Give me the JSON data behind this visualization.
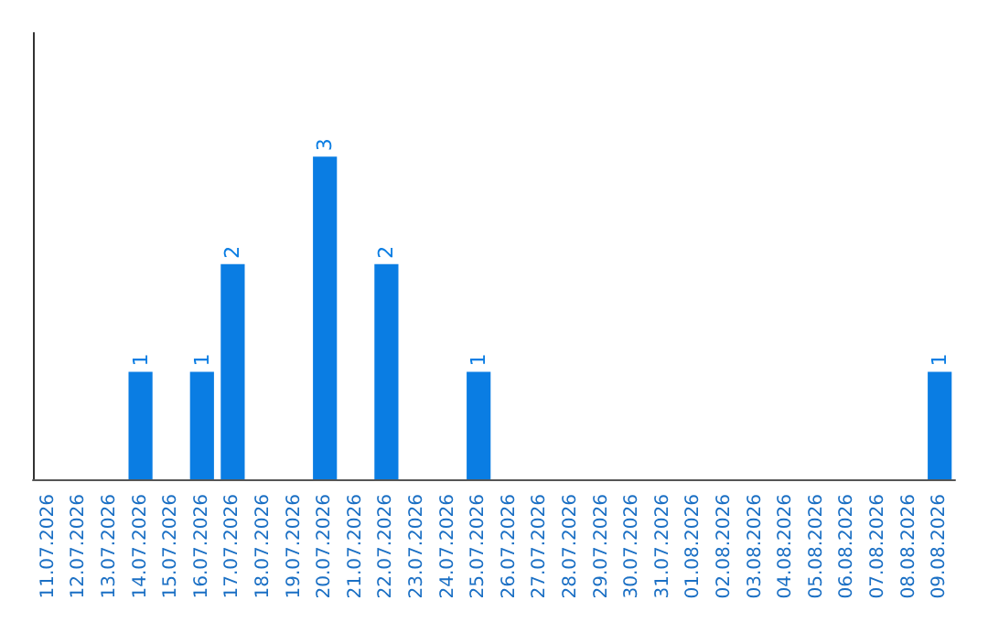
{
  "chart_data": {
    "type": "bar",
    "categories": [
      "11.07.2026",
      "12.07.2026",
      "13.07.2026",
      "14.07.2026",
      "15.07.2026",
      "16.07.2026",
      "17.07.2026",
      "18.07.2026",
      "19.07.2026",
      "20.07.2026",
      "21.07.2026",
      "22.07.2026",
      "23.07.2026",
      "24.07.2026",
      "25.07.2026",
      "26.07.2026",
      "27.07.2026",
      "28.07.2026",
      "29.07.2026",
      "30.07.2026",
      "31.07.2026",
      "01.08.2026",
      "02.08.2026",
      "03.08.2026",
      "04.08.2026",
      "05.08.2026",
      "06.08.2026",
      "07.08.2026",
      "08.08.2026",
      "09.08.2026"
    ],
    "values": [
      0,
      0,
      0,
      1,
      0,
      1,
      2,
      0,
      0,
      3,
      0,
      2,
      0,
      0,
      1,
      0,
      0,
      0,
      0,
      0,
      0,
      0,
      0,
      0,
      0,
      0,
      0,
      0,
      0,
      1
    ],
    "value_labels": [
      null,
      null,
      null,
      "1",
      null,
      "1",
      "2",
      null,
      null,
      "3",
      null,
      "2",
      null,
      null,
      "1",
      null,
      null,
      null,
      null,
      null,
      null,
      null,
      null,
      null,
      null,
      null,
      null,
      null,
      null,
      "1"
    ],
    "color": "#0a7de3",
    "ylim": [
      0,
      4.15
    ],
    "tick_labels": "x"
  }
}
